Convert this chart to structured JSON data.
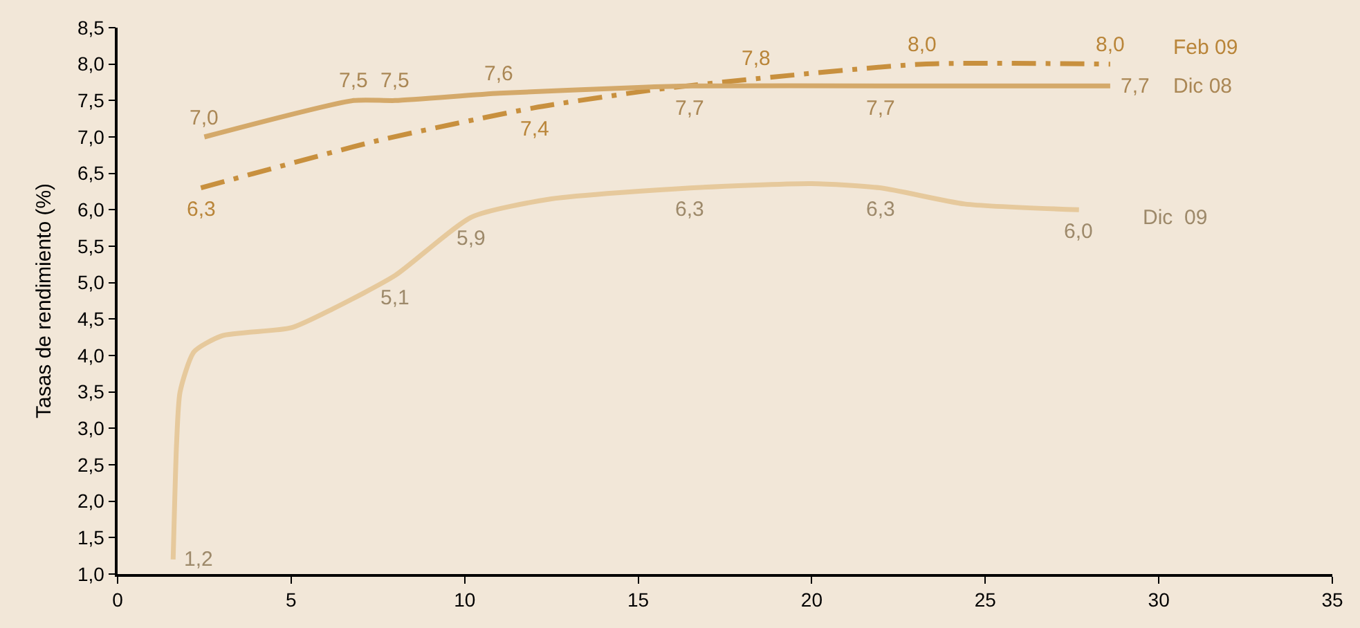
{
  "chart_data": {
    "type": "line",
    "ylabel": "Tasas de rendimiento (%)",
    "xlim": [
      0,
      35
    ],
    "xticks": [
      0,
      5,
      10,
      15,
      20,
      25,
      30,
      35
    ],
    "ylim": [
      1.0,
      8.5
    ],
    "yticks": [
      {
        "value": 1.0,
        "label": "1,0"
      },
      {
        "value": 1.5,
        "label": "1,5"
      },
      {
        "value": 2.0,
        "label": "2,0"
      },
      {
        "value": 2.5,
        "label": "2,5"
      },
      {
        "value": 3.0,
        "label": "3,0"
      },
      {
        "value": 3.5,
        "label": "3,5"
      },
      {
        "value": 4.0,
        "label": "4,0"
      },
      {
        "value": 4.5,
        "label": "4,5"
      },
      {
        "value": 5.0,
        "label": "5,0"
      },
      {
        "value": 5.5,
        "label": "5,5"
      },
      {
        "value": 6.0,
        "label": "6,0"
      },
      {
        "value": 6.5,
        "label": "6,5"
      },
      {
        "value": 7.0,
        "label": "7,0"
      },
      {
        "value": 7.5,
        "label": "7,5"
      },
      {
        "value": 8.0,
        "label": "8,0"
      },
      {
        "value": 8.5,
        "label": "8,5"
      }
    ],
    "grid": false,
    "legend": false,
    "marker": "none",
    "series": [
      {
        "name": "Feb 09",
        "color": "#c8903e",
        "line_style": "dashdot",
        "x": [
          2.4,
          7.5,
          12,
          15.5,
          18.4,
          23.2,
          28.6
        ],
        "values": [
          6.3,
          6.95,
          7.4,
          7.65,
          7.8,
          8.0,
          8.0
        ],
        "value_labels": [
          "6,3",
          null,
          "7,4",
          null,
          "7,8",
          "8,0",
          "8,0"
        ]
      },
      {
        "name": "Dic 08",
        "color": "#d4a96a",
        "line_style": "solid",
        "x": [
          2.5,
          6.8,
          8,
          11,
          15,
          16.5,
          22,
          28.6
        ],
        "values": [
          7.0,
          7.5,
          7.5,
          7.6,
          7.68,
          7.7,
          7.7,
          7.7
        ],
        "value_labels": [
          "7,0",
          "7,5",
          "7,5",
          "7,6",
          null,
          "7,7",
          "7,7",
          "7,7"
        ]
      },
      {
        "name": "Dic  09",
        "color": "#e6c99c",
        "line_style": "solid",
        "x": [
          1.6,
          1.7,
          1.8,
          2.2,
          3.0,
          5.0,
          6.2,
          8.0,
          10.2,
          12.5,
          16.5,
          20.0,
          22.0,
          24.4,
          27.7
        ],
        "values": [
          1.2,
          2.8,
          3.5,
          4.05,
          4.27,
          4.38,
          4.64,
          5.1,
          5.9,
          6.15,
          6.3,
          6.36,
          6.3,
          6.08,
          6.0
        ],
        "value_labels": [
          "1,2",
          null,
          null,
          null,
          null,
          null,
          null,
          "5,1",
          "5,9",
          null,
          "6,3",
          null,
          "6,3",
          null,
          "6,0"
        ]
      }
    ]
  }
}
